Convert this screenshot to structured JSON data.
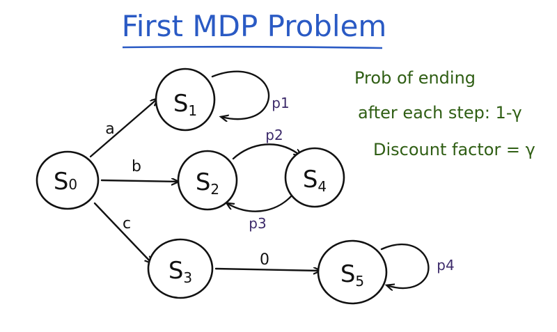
{
  "title": "First MDP Problem",
  "colors": {
    "title": "#2a5ac4",
    "ink": "#111111",
    "prob": "#3c2a6a",
    "note": "#2f5e14"
  },
  "states": [
    {
      "id": "s0",
      "letter": "S",
      "sub": "0"
    },
    {
      "id": "s1",
      "letter": "S",
      "sub": "1"
    },
    {
      "id": "s2",
      "letter": "S",
      "sub": "2"
    },
    {
      "id": "s3",
      "letter": "S",
      "sub": "3"
    },
    {
      "id": "s4",
      "letter": "S",
      "sub": "4"
    },
    {
      "id": "s5",
      "letter": "S",
      "sub": "5"
    }
  ],
  "edges": [
    {
      "from": "s0",
      "to": "s1",
      "label": "a"
    },
    {
      "from": "s0",
      "to": "s2",
      "label": "b"
    },
    {
      "from": "s0",
      "to": "s3",
      "label": "c"
    },
    {
      "from": "s3",
      "to": "s5",
      "label": "0"
    },
    {
      "from": "s1",
      "to": "s1",
      "label": "p1"
    },
    {
      "from": "s2",
      "to": "s4",
      "label": "p2"
    },
    {
      "from": "s4",
      "to": "s2",
      "label": "p3"
    },
    {
      "from": "s5",
      "to": "s5",
      "label": "p4"
    }
  ],
  "notes": {
    "line1": "Prob of ending",
    "line2": "after each step: 1-γ",
    "line3": "Discount factor = γ"
  }
}
